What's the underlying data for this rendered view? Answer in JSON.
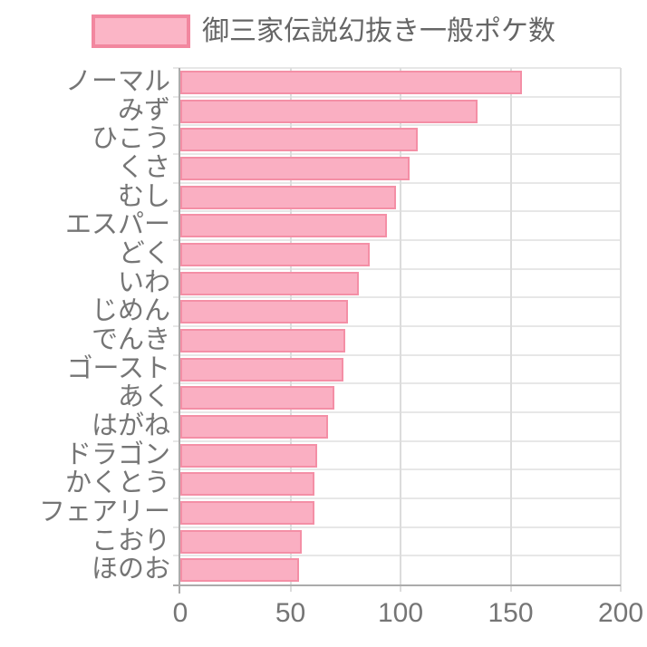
{
  "legend": {
    "label": "御三家伝説幻抜き一般ポケ数"
  },
  "chart_data": {
    "type": "bar",
    "orientation": "horizontal",
    "title": "",
    "series_label": "御三家伝説幻抜き一般ポケ数",
    "categories": [
      "ノーマル",
      "みず",
      "ひこう",
      "くさ",
      "むし",
      "エスパー",
      "どく",
      "いわ",
      "じめん",
      "でんき",
      "ゴースト",
      "あく",
      "はがね",
      "ドラゴン",
      "かくとう",
      "フェアリー",
      "こおり",
      "ほのお"
    ],
    "values": [
      155,
      135,
      108,
      104,
      98,
      94,
      86,
      81,
      76,
      75,
      74,
      70,
      67,
      62,
      61,
      61,
      55,
      54
    ],
    "xlabel": "",
    "ylabel": "",
    "xlim": [
      0,
      200
    ],
    "x_ticks": [
      0,
      50,
      100,
      150,
      200
    ],
    "grid": true,
    "legend_position": "top",
    "colors": {
      "bar_fill": "#FAAFC2",
      "bar_border": "#F48FA6",
      "legend_fill": "#FBB5C6",
      "legend_border": "#F2879F",
      "grid_line": "#E0E0E0",
      "axis_line": "#ABABAB",
      "tick_text": "#757575",
      "legend_text": "#666666"
    }
  }
}
